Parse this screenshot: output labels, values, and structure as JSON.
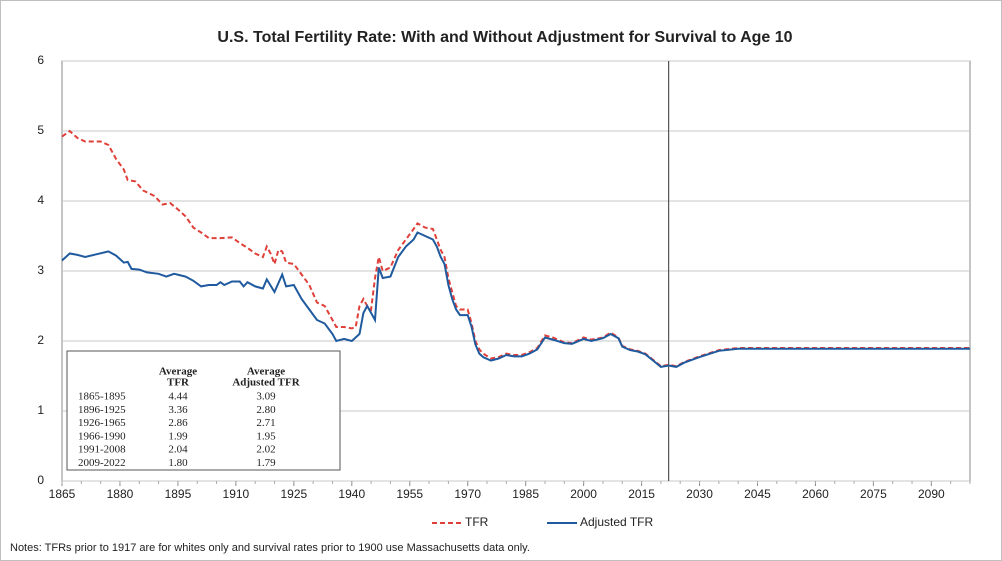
{
  "chart_data": {
    "type": "line",
    "title": "U.S. Total Fertility Rate: With and Without Adjustment for Survival to Age 10",
    "xlim": [
      1865,
      2100
    ],
    "xticks": [
      1865,
      1880,
      1895,
      1910,
      1925,
      1940,
      1955,
      1970,
      1985,
      2000,
      2015,
      2030,
      2045,
      2060,
      2075,
      2090
    ],
    "ylim": [
      0,
      6
    ],
    "yticks": [
      0,
      1,
      2,
      3,
      4,
      5,
      6
    ],
    "grid": true,
    "reference_line_x": 2022,
    "legend": "bottom",
    "series": [
      {
        "name": "TFR",
        "color": "#e0403a",
        "dash": true,
        "x": [
          1865,
          1867,
          1869,
          1871,
          1875,
          1877,
          1879,
          1881,
          1882,
          1884,
          1886,
          1889,
          1891,
          1893,
          1895,
          1897,
          1899,
          1901,
          1903,
          1906,
          1909,
          1911,
          1913,
          1915,
          1917,
          1918,
          1919,
          1920,
          1921,
          1922,
          1923,
          1925,
          1927,
          1929,
          1931,
          1933,
          1935,
          1936,
          1938,
          1940,
          1941,
          1942,
          1943,
          1944,
          1945,
          1946,
          1947,
          1948,
          1950,
          1952,
          1954,
          1956,
          1957,
          1959,
          1961,
          1962,
          1963,
          1964,
          1965,
          1966,
          1967,
          1968,
          1970,
          1971,
          1972,
          1973,
          1974,
          1976,
          1978,
          1980,
          1982,
          1984,
          1986,
          1988,
          1990,
          1992,
          1995,
          1997,
          2000,
          2002,
          2005,
          2007,
          2009,
          2010,
          2012,
          2014,
          2016,
          2018,
          2020,
          2022,
          2024,
          2026,
          2030,
          2035,
          2040,
          2050,
          2100
        ],
        "values": [
          4.92,
          5.0,
          4.9,
          4.85,
          4.85,
          4.8,
          4.6,
          4.45,
          4.3,
          4.28,
          4.15,
          4.07,
          3.95,
          3.97,
          3.88,
          3.78,
          3.62,
          3.55,
          3.47,
          3.47,
          3.48,
          3.4,
          3.33,
          3.25,
          3.2,
          3.35,
          3.25,
          3.1,
          3.3,
          3.28,
          3.12,
          3.1,
          2.95,
          2.8,
          2.55,
          2.5,
          2.3,
          2.2,
          2.2,
          2.18,
          2.2,
          2.5,
          2.6,
          2.5,
          2.45,
          2.9,
          3.2,
          3.0,
          3.05,
          3.3,
          3.45,
          3.6,
          3.68,
          3.62,
          3.6,
          3.45,
          3.3,
          3.2,
          2.9,
          2.7,
          2.5,
          2.45,
          2.45,
          2.25,
          2.0,
          1.88,
          1.82,
          1.75,
          1.77,
          1.82,
          1.8,
          1.8,
          1.84,
          1.9,
          2.08,
          2.05,
          1.98,
          1.97,
          2.05,
          2.02,
          2.05,
          2.12,
          2.05,
          1.93,
          1.88,
          1.86,
          1.82,
          1.73,
          1.64,
          1.66,
          1.64,
          1.7,
          1.78,
          1.87,
          1.9,
          1.9,
          1.9
        ]
      },
      {
        "name": "Adjusted TFR",
        "color": "#1f5a9e",
        "dash": false,
        "x": [
          1865,
          1867,
          1869,
          1871,
          1874,
          1877,
          1879,
          1881,
          1882,
          1883,
          1885,
          1887,
          1890,
          1892,
          1894,
          1897,
          1899,
          1901,
          1903,
          1905,
          1906,
          1907,
          1909,
          1911,
          1912,
          1913,
          1915,
          1917,
          1918,
          1920,
          1922,
          1923,
          1925,
          1927,
          1929,
          1931,
          1933,
          1935,
          1936,
          1938,
          1940,
          1942,
          1943,
          1944,
          1946,
          1947,
          1948,
          1950,
          1952,
          1954,
          1956,
          1957,
          1959,
          1961,
          1962,
          1963,
          1964,
          1965,
          1966,
          1967,
          1968,
          1970,
          1971,
          1972,
          1973,
          1974,
          1976,
          1978,
          1980,
          1982,
          1984,
          1986,
          1988,
          1990,
          1992,
          1995,
          1997,
          2000,
          2002,
          2005,
          2007,
          2009,
          2010,
          2012,
          2014,
          2016,
          2018,
          2020,
          2022,
          2024,
          2026,
          2030,
          2035,
          2040,
          2050,
          2100
        ],
        "values": [
          3.15,
          3.25,
          3.23,
          3.2,
          3.24,
          3.28,
          3.22,
          3.12,
          3.13,
          3.03,
          3.02,
          2.98,
          2.96,
          2.92,
          2.96,
          2.92,
          2.86,
          2.78,
          2.8,
          2.8,
          2.84,
          2.8,
          2.85,
          2.85,
          2.78,
          2.84,
          2.78,
          2.75,
          2.88,
          2.7,
          2.95,
          2.78,
          2.8,
          2.6,
          2.45,
          2.3,
          2.25,
          2.1,
          2.0,
          2.03,
          2.0,
          2.1,
          2.4,
          2.5,
          2.3,
          3.05,
          2.9,
          2.92,
          3.2,
          3.35,
          3.45,
          3.55,
          3.5,
          3.45,
          3.35,
          3.2,
          3.1,
          2.8,
          2.6,
          2.45,
          2.37,
          2.37,
          2.2,
          1.95,
          1.82,
          1.77,
          1.72,
          1.75,
          1.8,
          1.78,
          1.78,
          1.82,
          1.88,
          2.05,
          2.02,
          1.97,
          1.96,
          2.03,
          2.0,
          2.04,
          2.1,
          2.04,
          1.92,
          1.87,
          1.85,
          1.81,
          1.72,
          1.63,
          1.65,
          1.63,
          1.69,
          1.77,
          1.86,
          1.89,
          1.89,
          1.89
        ]
      }
    ],
    "table": {
      "columns": [
        [
          "Average",
          "TFR"
        ],
        [
          "Average",
          "Adjusted TFR"
        ]
      ],
      "rows": [
        [
          "1865-1895",
          "4.44",
          "3.09"
        ],
        [
          "1896-1925",
          "3.36",
          "2.80"
        ],
        [
          "1926-1965",
          "2.86",
          "2.71"
        ],
        [
          "1966-1990",
          "1.99",
          "1.95"
        ],
        [
          "1991-2008",
          "2.04",
          "2.02"
        ],
        [
          "2009-2022",
          "1.80",
          "1.79"
        ]
      ]
    },
    "note": "Notes: TFRs prior to 1917 are for whites only and survival rates prior to 1900 use Massachusetts data only."
  }
}
